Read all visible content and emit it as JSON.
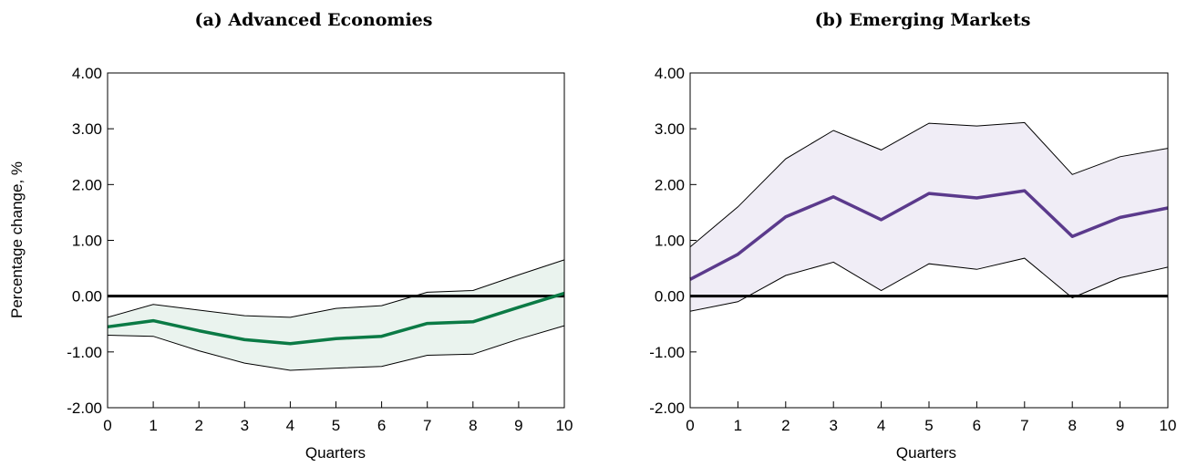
{
  "chart_data": [
    {
      "type": "line",
      "title": "(a) Advanced Economies",
      "xlabel": "Quarters",
      "ylabel": "Percentage change, %",
      "x": [
        0,
        1,
        2,
        3,
        4,
        5,
        6,
        7,
        8,
        9,
        10
      ],
      "xticks": [
        "0",
        "1",
        "2",
        "3",
        "4",
        "5",
        "6",
        "7",
        "8",
        "9",
        "10"
      ],
      "yticks": [
        "-2.00",
        "-1.00",
        "0.00",
        "1.00",
        "2.00",
        "3.00",
        "4.00"
      ],
      "xlim": [
        0,
        10
      ],
      "ylim": [
        -2,
        4
      ],
      "grid": false,
      "series": [
        {
          "role": "estimate",
          "values": [
            -0.55,
            -0.44,
            -0.62,
            -0.78,
            -0.85,
            -0.76,
            -0.72,
            -0.49,
            -0.46,
            -0.2,
            0.05
          ]
        },
        {
          "role": "upper-band",
          "values": [
            -0.38,
            -0.15,
            -0.25,
            -0.35,
            -0.38,
            -0.22,
            -0.17,
            0.07,
            0.1,
            0.38,
            0.65
          ]
        },
        {
          "role": "lower-band",
          "values": [
            -0.7,
            -0.72,
            -0.98,
            -1.2,
            -1.33,
            -1.29,
            -1.26,
            -1.06,
            -1.04,
            -0.77,
            -0.53
          ]
        }
      ],
      "colors": {
        "line": "#0b7a45",
        "band_fill": "#eaf3ee",
        "band_edge": "#000000",
        "zero_line": "#000000"
      }
    },
    {
      "type": "line",
      "title": "(b) Emerging Markets",
      "xlabel": "Quarters",
      "ylabel": "",
      "x": [
        0,
        1,
        2,
        3,
        4,
        5,
        6,
        7,
        8,
        9,
        10
      ],
      "xticks": [
        "0",
        "1",
        "2",
        "3",
        "4",
        "5",
        "6",
        "7",
        "8",
        "9",
        "10"
      ],
      "yticks": [
        "-2.00",
        "-1.00",
        "0.00",
        "1.00",
        "2.00",
        "3.00",
        "4.00"
      ],
      "xlim": [
        0,
        10
      ],
      "ylim": [
        -2,
        4
      ],
      "grid": false,
      "series": [
        {
          "role": "estimate",
          "values": [
            0.3,
            0.75,
            1.42,
            1.78,
            1.37,
            1.84,
            1.76,
            1.89,
            1.07,
            1.41,
            1.58
          ]
        },
        {
          "role": "upper-band",
          "values": [
            0.88,
            1.6,
            2.46,
            2.97,
            2.62,
            3.1,
            3.05,
            3.11,
            2.18,
            2.5,
            2.65
          ]
        },
        {
          "role": "lower-band",
          "values": [
            -0.27,
            -0.1,
            0.37,
            0.61,
            0.1,
            0.58,
            0.48,
            0.68,
            -0.03,
            0.33,
            0.52
          ]
        }
      ],
      "colors": {
        "line": "#5b3a8c",
        "band_fill": "#f0edf6",
        "band_edge": "#000000",
        "zero_line": "#000000"
      }
    }
  ]
}
